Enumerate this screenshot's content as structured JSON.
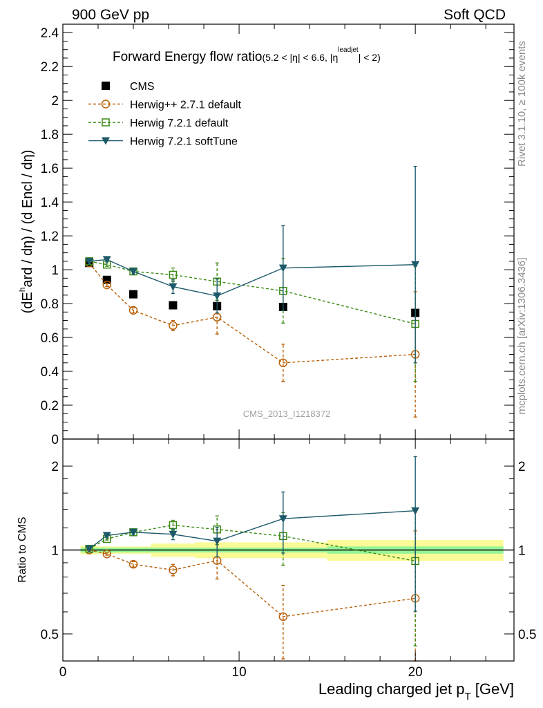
{
  "header": {
    "left": "900 GeV pp",
    "right": "Soft QCD"
  },
  "side_labels": {
    "rivet": "Rivet 3.1.10, ≥ 100k events",
    "mcplots": "mcplots.cern.ch [arXiv:1306.3436]"
  },
  "chart_data": [
    {
      "type": "scatter",
      "panel": "main",
      "title_main": "Forward Energy flow ratio",
      "title_cond_1": "(5.2 < |η| < 6.6, |η",
      "title_cond_sup": "leadjet",
      "title_cond_2": "| < 2)",
      "ylabel_prefix": "(dE",
      "ylabel_sup": "h",
      "ylabel_suffix": "ard / dη) / (d Encl / dη)",
      "watermark": "CMS_2013_I1218372",
      "xlim": [
        0,
        25.6
      ],
      "ylim": [
        0,
        2.45
      ],
      "yticks": [
        "0",
        "0.2",
        "0.4",
        "0.6",
        "0.8",
        "1",
        "1.2",
        "1.4",
        "1.6",
        "1.8",
        "2",
        "2.2",
        "2.4"
      ],
      "ytick_values": [
        0,
        0.2,
        0.4,
        0.6,
        0.8,
        1.0,
        1.2,
        1.4,
        1.6,
        1.8,
        2.0,
        2.2,
        2.4
      ],
      "legend_position": "top-left",
      "grid": false,
      "series": [
        {
          "name": "CMS",
          "style": "square-filled",
          "color": "#000000",
          "x": [
            1.5,
            2.5,
            4.0,
            6.25,
            8.75,
            12.5,
            20.0
          ],
          "y": [
            1.04,
            0.94,
            0.855,
            0.79,
            0.785,
            0.78,
            0.745
          ]
        },
        {
          "name": "Herwig++ 2.7.1 default",
          "style": "circle-open-dashed",
          "color": "#b8600a",
          "x": [
            1.5,
            2.5,
            4.0,
            6.25,
            8.75,
            12.5,
            20.0
          ],
          "y": [
            1.04,
            0.91,
            0.76,
            0.67,
            0.72,
            0.45,
            0.5
          ],
          "err": [
            0.01,
            0.01,
            0.015,
            0.03,
            0.1,
            0.11,
            0.37
          ]
        },
        {
          "name": "Herwig 7.2.1 default",
          "style": "square-open-dashed",
          "color": "#3a8a12",
          "x": [
            1.5,
            2.5,
            4.0,
            6.25,
            8.75,
            12.5,
            20.0
          ],
          "y": [
            1.05,
            1.03,
            0.99,
            0.97,
            0.93,
            0.875,
            0.68
          ],
          "err": [
            0.01,
            0.01,
            0.015,
            0.04,
            0.11,
            0.19,
            0.34
          ]
        },
        {
          "name": "Herwig 7.2.1 softTune",
          "style": "triangle-filled-solid",
          "color": "#1c5a6a",
          "x": [
            1.5,
            2.5,
            4.0,
            6.25,
            8.75,
            12.5,
            20.0
          ],
          "y": [
            1.05,
            1.06,
            0.99,
            0.9,
            0.845,
            1.01,
            1.03
          ],
          "err": [
            0.01,
            0.01,
            0.015,
            0.04,
            0.1,
            0.25,
            0.58
          ]
        }
      ]
    },
    {
      "type": "scatter",
      "panel": "ratio",
      "ylabel": "Ratio to CMS",
      "xlabel_main": "Leading charged jet p",
      "xlabel_sub": "T",
      "xlabel_unit": " [GeV]",
      "xlim": [
        0,
        25.6
      ],
      "ylim": [
        0.4,
        2.5
      ],
      "log_y": true,
      "xticks": [
        "0",
        "10",
        "20"
      ],
      "xtick_values": [
        0,
        10,
        20
      ],
      "yticks": [
        "0.5",
        "1",
        "2"
      ],
      "ytick_values": [
        0.5,
        1.0,
        2.0
      ],
      "band_edges": [
        1.0,
        2.0,
        5.0,
        7.5,
        15.0,
        25.0
      ],
      "band_stat": [
        0.02,
        0.02,
        0.02,
        0.02,
        0.03
      ],
      "band_total": [
        0.035,
        0.03,
        0.055,
        0.065,
        0.085
      ],
      "series": [
        {
          "name": "Herwig++ 2.7.1 default",
          "color": "#b8600a",
          "x": [
            1.5,
            2.5,
            4.0,
            6.25,
            8.75,
            12.5,
            20.0
          ],
          "y": [
            1.0,
            0.968,
            0.889,
            0.848,
            0.917,
            0.577,
            0.671
          ],
          "err": [
            0.01,
            0.01,
            0.02,
            0.04,
            0.13,
            0.17,
            0.5
          ]
        },
        {
          "name": "Herwig 7.2.1 default",
          "color": "#3a8a12",
          "x": [
            1.5,
            2.5,
            4.0,
            6.25,
            8.75,
            12.5,
            20.0
          ],
          "y": [
            1.01,
            1.096,
            1.158,
            1.228,
            1.185,
            1.122,
            0.913
          ],
          "err": [
            0.01,
            0.01,
            0.02,
            0.05,
            0.14,
            0.24,
            0.46
          ]
        },
        {
          "name": "Herwig 7.2.1 softTune",
          "color": "#1c5a6a",
          "x": [
            1.5,
            2.5,
            4.0,
            6.25,
            8.75,
            12.5,
            20.0
          ],
          "y": [
            1.01,
            1.128,
            1.158,
            1.139,
            1.076,
            1.295,
            1.383
          ],
          "err": [
            0.01,
            0.01,
            0.02,
            0.05,
            0.13,
            0.32,
            0.78
          ]
        }
      ]
    }
  ]
}
